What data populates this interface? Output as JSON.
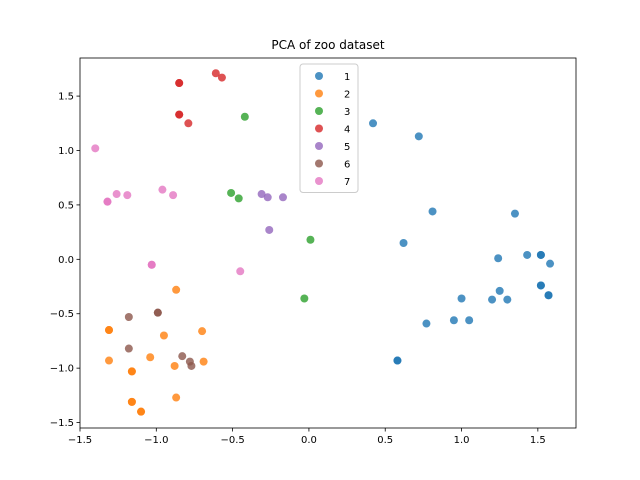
{
  "chart_data": {
    "type": "scatter",
    "title": "PCA of zoo dataset",
    "xlabel": "",
    "ylabel": "",
    "xlim": [
      -1.5,
      1.75
    ],
    "ylim": [
      -1.55,
      1.85
    ],
    "xticks": [
      -1.5,
      -1.0,
      -0.5,
      0.0,
      0.5,
      1.0,
      1.5
    ],
    "xtick_labels": [
      "−1.5",
      "−1.0",
      "−0.5",
      "0.0",
      "0.5",
      "1.0",
      "1.5"
    ],
    "yticks": [
      -1.5,
      -1.0,
      -0.5,
      0.0,
      0.5,
      1.0,
      1.5
    ],
    "ytick_labels": [
      "−1.5",
      "−1.0",
      "−0.5",
      "0.0",
      "0.5",
      "1.0",
      "1.5"
    ],
    "grid": false,
    "legend_position": "top-center",
    "series": [
      {
        "name": "1",
        "color": "#1f77b4",
        "points": [
          [
            0.42,
            1.25
          ],
          [
            0.72,
            1.13
          ],
          [
            0.81,
            0.44
          ],
          [
            0.62,
            0.15
          ],
          [
            1.35,
            0.42
          ],
          [
            1.24,
            0.01
          ],
          [
            1.43,
            0.04
          ],
          [
            1.52,
            0.04
          ],
          [
            1.52,
            0.04
          ],
          [
            1.58,
            -0.04
          ],
          [
            1.25,
            -0.29
          ],
          [
            1.52,
            -0.24
          ],
          [
            1.52,
            -0.24
          ],
          [
            1.57,
            -0.33
          ],
          [
            1.57,
            -0.33
          ],
          [
            1.0,
            -0.36
          ],
          [
            1.2,
            -0.37
          ],
          [
            1.3,
            -0.37
          ],
          [
            0.95,
            -0.56
          ],
          [
            1.05,
            -0.56
          ],
          [
            0.77,
            -0.59
          ],
          [
            0.58,
            -0.93
          ],
          [
            0.58,
            -0.93
          ]
        ]
      },
      {
        "name": "2",
        "color": "#ff7f0e",
        "points": [
          [
            -0.87,
            -0.28
          ],
          [
            -1.31,
            -0.65
          ],
          [
            -1.31,
            -0.65
          ],
          [
            -0.95,
            -0.7
          ],
          [
            -0.7,
            -0.66
          ],
          [
            -1.31,
            -0.93
          ],
          [
            -1.04,
            -0.9
          ],
          [
            -0.88,
            -0.98
          ],
          [
            -0.69,
            -0.94
          ],
          [
            -1.16,
            -1.03
          ],
          [
            -1.16,
            -1.03
          ],
          [
            -0.87,
            -1.27
          ],
          [
            -1.16,
            -1.31
          ],
          [
            -1.16,
            -1.31
          ],
          [
            -1.1,
            -1.4
          ],
          [
            -1.1,
            -1.4
          ]
        ]
      },
      {
        "name": "3",
        "color": "#2ca02c",
        "points": [
          [
            -0.42,
            1.31
          ],
          [
            -0.51,
            0.61
          ],
          [
            -0.46,
            0.56
          ],
          [
            0.01,
            0.18
          ],
          [
            -0.03,
            -0.36
          ]
        ]
      },
      {
        "name": "4",
        "color": "#d62728",
        "points": [
          [
            -0.61,
            1.71
          ],
          [
            -0.57,
            1.67
          ],
          [
            -0.85,
            1.62
          ],
          [
            -0.85,
            1.62
          ],
          [
            -0.85,
            1.33
          ],
          [
            -0.85,
            1.33
          ],
          [
            -0.79,
            1.25
          ]
        ]
      },
      {
        "name": "5",
        "color": "#9467bd",
        "points": [
          [
            -0.31,
            0.6
          ],
          [
            -0.27,
            0.57
          ],
          [
            -0.17,
            0.57
          ],
          [
            -0.26,
            0.27
          ]
        ]
      },
      {
        "name": "6",
        "color": "#8c564b",
        "points": [
          [
            -0.99,
            -0.49
          ],
          [
            -0.99,
            -0.49
          ],
          [
            -1.18,
            -0.53
          ],
          [
            -1.18,
            -0.82
          ],
          [
            -0.83,
            -0.89
          ],
          [
            -0.78,
            -0.94
          ],
          [
            -0.77,
            -0.98
          ]
        ]
      },
      {
        "name": "7",
        "color": "#e377c2",
        "points": [
          [
            -1.4,
            1.02
          ],
          [
            -0.96,
            0.64
          ],
          [
            -1.26,
            0.6
          ],
          [
            -1.19,
            0.59
          ],
          [
            -0.89,
            0.59
          ],
          [
            -1.32,
            0.53
          ],
          [
            -1.32,
            0.53
          ],
          [
            -1.03,
            -0.05
          ],
          [
            -1.03,
            -0.05
          ],
          [
            -0.45,
            -0.11
          ]
        ]
      }
    ]
  }
}
